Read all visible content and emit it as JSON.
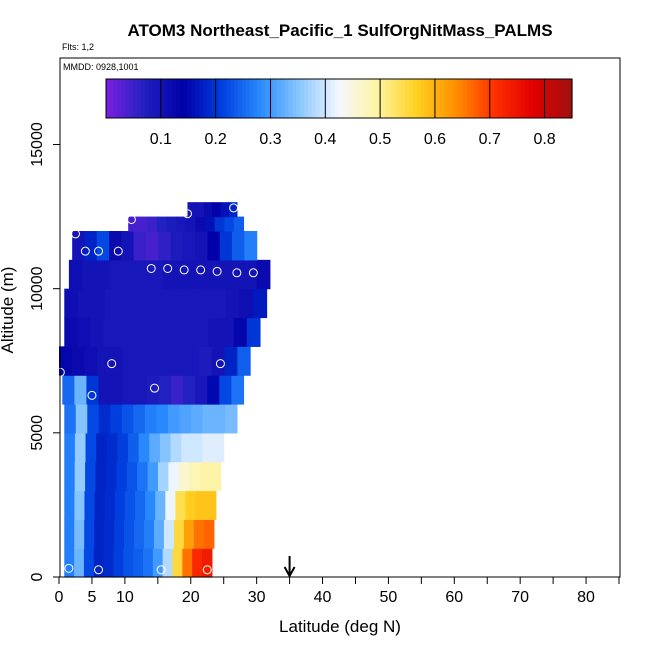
{
  "chart_data": {
    "type": "heatmap",
    "title": "ATOM3 Northeast_Pacific_1 SulfOrgNitMass_PALMS",
    "subtitle_flights": "Flts: 1,2",
    "subtitle_dates": "MMDD: 0928,1001",
    "xlabel": "Latitude (deg N)",
    "ylabel": "Altitude (m)",
    "xlim": [
      0,
      85
    ],
    "ylim": [
      0,
      18000
    ],
    "x_ticks": [
      0,
      5,
      10,
      20,
      30,
      40,
      50,
      60,
      70,
      80
    ],
    "x_minor_ticks": [
      15,
      25,
      35,
      45,
      55,
      65,
      75,
      85
    ],
    "y_ticks": [
      0,
      5000,
      10000,
      15000
    ],
    "colorbar": {
      "range": [
        0,
        0.85
      ],
      "ticks": [
        0.1,
        0.2,
        0.3,
        0.4,
        0.5,
        0.6,
        0.7,
        0.8
      ],
      "colors": [
        "#7a1fe0",
        "#2020c0",
        "#0000a8",
        "#0040e0",
        "#2a8cff",
        "#8cc8ff",
        "#f4f8ff",
        "#fff4a0",
        "#ffd020",
        "#ff9000",
        "#ff3000",
        "#e00000",
        "#a01010"
      ]
    },
    "arrow_latitude": 35,
    "rows": [
      {
        "alt": [
          0,
          1000
        ],
        "x0": 0.8,
        "x1": 23.2,
        "values": [
          0.27,
          0.33,
          0.22,
          0.18,
          0.19,
          0.21,
          0.23,
          0.24,
          0.26,
          0.3,
          0.38,
          0.55,
          0.66,
          0.72,
          0.74
        ]
      },
      {
        "alt": [
          1000,
          2000
        ],
        "x0": 0.8,
        "x1": 23.5,
        "values": [
          0.27,
          0.34,
          0.22,
          0.18,
          0.19,
          0.21,
          0.23,
          0.25,
          0.27,
          0.32,
          0.4,
          0.55,
          0.62,
          0.66,
          0.67
        ]
      },
      {
        "alt": [
          2000,
          3000
        ],
        "x0": 0.8,
        "x1": 23.8,
        "values": [
          0.27,
          0.35,
          0.22,
          0.18,
          0.19,
          0.21,
          0.23,
          0.25,
          0.28,
          0.33,
          0.42,
          0.54,
          0.57,
          0.58,
          0.58
        ]
      },
      {
        "alt": [
          3000,
          4000
        ],
        "x0": 0.8,
        "x1": 24.5,
        "values": [
          0.27,
          0.36,
          0.22,
          0.18,
          0.19,
          0.21,
          0.23,
          0.26,
          0.3,
          0.37,
          0.42,
          0.46,
          0.48,
          0.49,
          0.49
        ]
      },
      {
        "alt": [
          4000,
          5000
        ],
        "x0": 0.8,
        "x1": 25.0,
        "values": [
          0.27,
          0.36,
          0.22,
          0.18,
          0.19,
          0.21,
          0.24,
          0.28,
          0.32,
          0.35,
          0.38,
          0.4,
          0.4,
          0.41,
          0.41
        ]
      },
      {
        "alt": [
          5000,
          6000
        ],
        "x0": 0.8,
        "x1": 27.0,
        "values": [
          0.26,
          0.35,
          0.22,
          0.19,
          0.21,
          0.23,
          0.25,
          0.27,
          0.28,
          0.3,
          0.31,
          0.32,
          0.33,
          0.33,
          0.34
        ]
      },
      {
        "alt": [
          6000,
          7000
        ],
        "x0": 0.5,
        "x1": 28.0,
        "values": [
          0.25,
          0.33,
          0.2,
          0.1,
          0.1,
          0.09,
          0.09,
          0.08,
          0.07,
          0.05,
          0.07,
          0.09,
          0.15,
          0.22,
          0.26
        ]
      },
      {
        "alt": [
          7000,
          8000
        ],
        "x0": 0.0,
        "x1": 29.0,
        "values": [
          0.13,
          0.12,
          0.11,
          0.1,
          0.1,
          0.09,
          0.09,
          0.09,
          0.09,
          0.09,
          0.09,
          0.08,
          0.1,
          0.18,
          0.24
        ]
      },
      {
        "alt": [
          8000,
          9000
        ],
        "x0": 0.8,
        "x1": 30.5,
        "values": [
          0.12,
          0.11,
          0.1,
          0.09,
          0.09,
          0.09,
          0.09,
          0.09,
          0.09,
          0.09,
          0.09,
          0.1,
          0.1,
          0.13,
          0.2
        ]
      },
      {
        "alt": [
          9000,
          10000
        ],
        "x0": 0.8,
        "x1": 31.5,
        "values": [
          0.11,
          0.1,
          0.1,
          0.09,
          0.09,
          0.09,
          0.09,
          0.09,
          0.09,
          0.09,
          0.09,
          0.09,
          0.1,
          0.11,
          0.17
        ]
      },
      {
        "alt": [
          10000,
          11000
        ],
        "x0": 1.5,
        "x1": 32.0,
        "values": [
          0.11,
          0.1,
          0.1,
          0.09,
          0.09,
          0.09,
          0.09,
          0.1,
          0.1,
          0.1,
          0.1,
          0.1,
          0.1,
          0.1,
          0.12
        ]
      },
      {
        "alt": [
          11000,
          12000
        ],
        "x0": 2.0,
        "x1": 30.0,
        "values": [
          0.1,
          0.18,
          0.22,
          0.12,
          0.1,
          0.05,
          0.04,
          0.06,
          0.08,
          0.09,
          0.1,
          0.14,
          0.2,
          0.24,
          0.27
        ]
      },
      {
        "alt": [
          12000,
          12500
        ],
        "x0": 10.5,
        "x1": 28.0,
        "values": [
          0.04,
          0.04,
          0.05,
          0.07,
          0.08,
          0.09,
          0.1,
          0.12,
          0.16,
          0.2,
          0.22,
          0.24
        ]
      },
      {
        "alt": [
          12500,
          13000
        ],
        "x0": 19.5,
        "x1": 27.0,
        "values": [
          0.1,
          0.1,
          0.12,
          0.14,
          0.16,
          0.18
        ]
      }
    ],
    "points": [
      [
        1.5,
        300
      ],
      [
        6,
        250
      ],
      [
        15.5,
        250
      ],
      [
        22.5,
        250
      ],
      [
        0.2,
        7100
      ],
      [
        5,
        6300
      ],
      [
        14.5,
        6550
      ],
      [
        24.5,
        7400
      ],
      [
        8,
        7400
      ],
      [
        14,
        10700
      ],
      [
        16.5,
        10700
      ],
      [
        19,
        10650
      ],
      [
        21.5,
        10650
      ],
      [
        24,
        10600
      ],
      [
        27,
        10550
      ],
      [
        29.5,
        10550
      ],
      [
        4,
        11300
      ],
      [
        6,
        11300
      ],
      [
        9,
        11300
      ],
      [
        2.5,
        11900
      ],
      [
        11,
        12400
      ],
      [
        19.5,
        12600
      ],
      [
        26.5,
        12800
      ],
      [
        29.5,
        12400
      ]
    ]
  }
}
